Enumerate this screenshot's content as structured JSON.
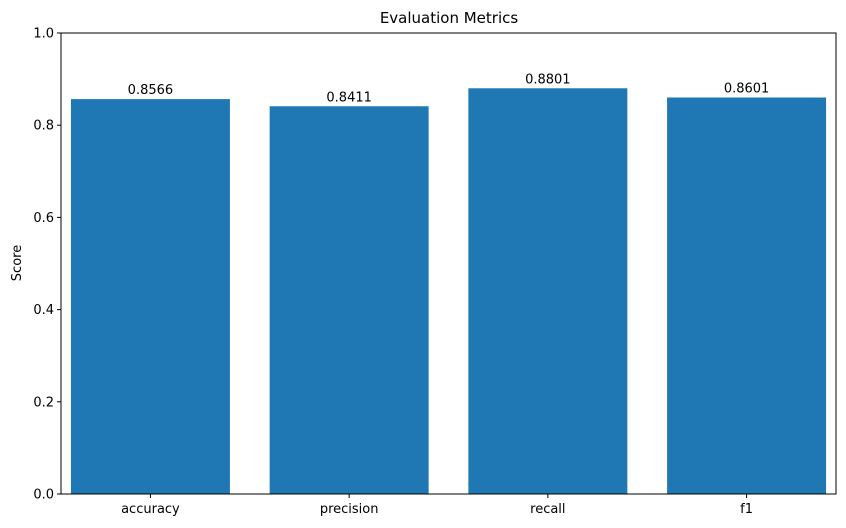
{
  "chart_data": {
    "type": "bar",
    "title": "Evaluation Metrics",
    "xlabel": "",
    "ylabel": "Score",
    "categories": [
      "accuracy",
      "precision",
      "recall",
      "f1"
    ],
    "values": [
      0.8566,
      0.8411,
      0.8801,
      0.8601
    ],
    "data_labels": [
      "0.8566",
      "0.8411",
      "0.8801",
      "0.8601"
    ],
    "ylim": [
      0,
      1.0
    ],
    "yticks": [
      0.0,
      0.2,
      0.4,
      0.6,
      0.8,
      1.0
    ],
    "ytick_labels": [
      "0.0",
      "0.2",
      "0.4",
      "0.6",
      "0.8",
      "1.0"
    ],
    "bar_color": "#1f77b4",
    "grid": false,
    "legend": "none"
  }
}
